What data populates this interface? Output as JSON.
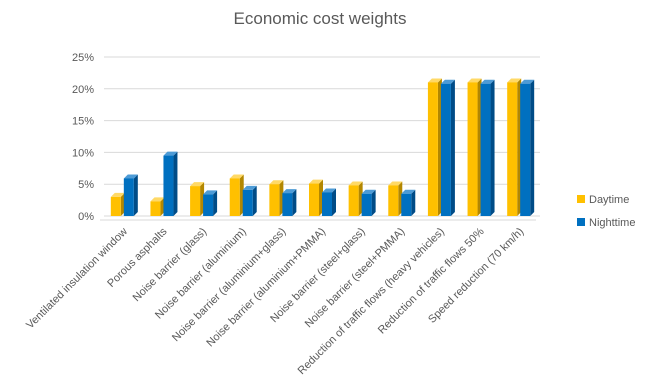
{
  "colors": {
    "daytime": "#FFC000",
    "daytime_dark": "#B38700",
    "daytime_light": "#FFD966",
    "nighttime": "#0070C0",
    "nighttime_dark": "#004C87",
    "nighttime_light": "#4D9BD6",
    "grid": "#D9D9D9",
    "text": "#595959"
  },
  "chart_data": {
    "type": "bar",
    "title": "Economic cost weights",
    "xlabel": "",
    "ylabel": "",
    "ylim": [
      0,
      25
    ],
    "yticks": [
      "0%",
      "5%",
      "10%",
      "15%",
      "20%",
      "25%"
    ],
    "grid": true,
    "legend_position": "right",
    "style": "3d clustered column",
    "categories": [
      "Ventilated insulation window",
      "Porous asphalts",
      "Noise barrier (glass)",
      "Noise barrier (aluminium)",
      "Noise barrier (aluminium+glass)",
      "Noise barrier (aluminium+PMMA)",
      "Noise barrier (steel+glass)",
      "Noise barrier (steel+PMMA)",
      "Reduction of traffic flows (heavy vehicles)",
      "Reduction of traffic flows 50%",
      "Speed reduction (70 km/h)"
    ],
    "series": [
      {
        "name": "Daytime",
        "values": [
          3.0,
          2.3,
          4.7,
          5.9,
          5.0,
          5.1,
          4.8,
          4.8,
          21.0,
          21.0,
          21.0
        ]
      },
      {
        "name": "Nighttime",
        "values": [
          5.9,
          9.5,
          3.4,
          4.1,
          3.6,
          3.7,
          3.5,
          3.5,
          20.8,
          20.8,
          20.8
        ]
      }
    ]
  }
}
